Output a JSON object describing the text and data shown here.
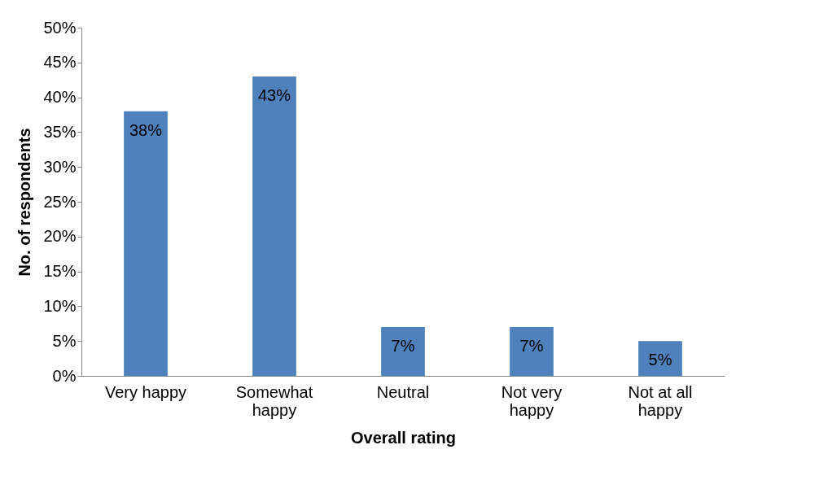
{
  "chart_data": {
    "type": "bar",
    "xlabel": "Overall rating",
    "ylabel": "No. of respondents",
    "categories": [
      "Very happy",
      "Somewhat happy",
      "Neutral",
      "Not very happy",
      "Not at all happy"
    ],
    "values": [
      38,
      43,
      7,
      7,
      5
    ],
    "color": "#4f81bd",
    "value_labels": [
      "38%",
      "43%",
      "7%",
      "7%",
      "5%"
    ],
    "ylim": [
      0,
      50
    ],
    "yticks": [
      {
        "value": 0,
        "label": "0%"
      },
      {
        "value": 5,
        "label": "5%"
      },
      {
        "value": 10,
        "label": "10%"
      },
      {
        "value": 15,
        "label": "15%"
      },
      {
        "value": 20,
        "label": "20%"
      },
      {
        "value": 25,
        "label": "25%"
      },
      {
        "value": 30,
        "label": "30%"
      },
      {
        "value": 35,
        "label": "35%"
      },
      {
        "value": 40,
        "label": "40%"
      },
      {
        "value": 45,
        "label": "45%"
      },
      {
        "value": 50,
        "label": "50%"
      }
    ],
    "grid": false
  }
}
